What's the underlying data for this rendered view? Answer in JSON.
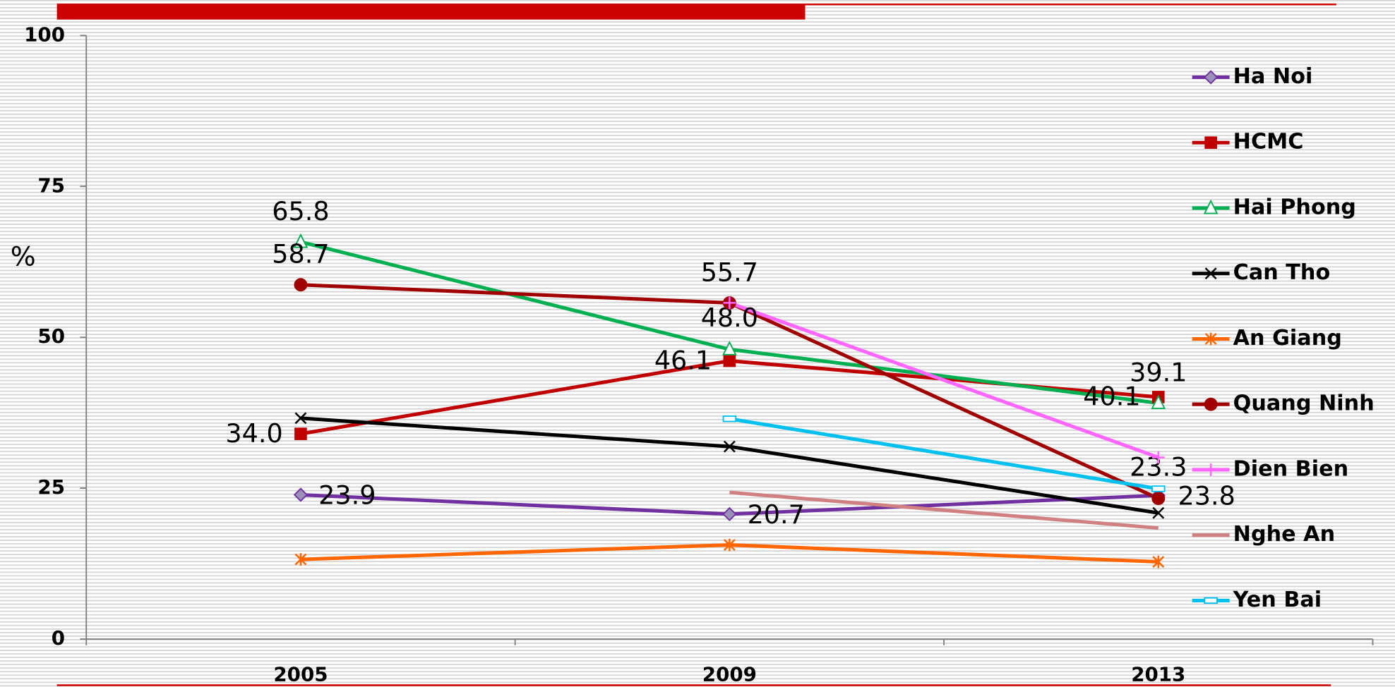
{
  "chart_data": {
    "type": "line",
    "y_label": "%",
    "categories": [
      "2005",
      "2009",
      "2013"
    ],
    "ylim": [
      0,
      100
    ],
    "yticks": [
      0,
      25,
      50,
      75,
      100
    ],
    "grid": false,
    "legend": "right",
    "series": [
      {
        "name": "Ha Noi",
        "color": "#7030a0",
        "marker": "diamond",
        "values": [
          23.9,
          20.7,
          23.8
        ],
        "value_labels": [
          "23.9",
          "20.7",
          "23.8"
        ]
      },
      {
        "name": "HCMC",
        "color": "#c00000",
        "marker": "square",
        "values": [
          34.0,
          46.1,
          40.1
        ],
        "value_labels": [
          "34.0",
          "46.1",
          "40.1"
        ]
      },
      {
        "name": "Hai Phong",
        "color": "#00b050",
        "marker": "triangle",
        "values": [
          65.8,
          48.0,
          39.1
        ],
        "value_labels": [
          "65.8",
          "48.0",
          "39.1"
        ]
      },
      {
        "name": "Can Tho",
        "color": "#000000",
        "marker": "x",
        "values": [
          36.6,
          31.9,
          20.9
        ]
      },
      {
        "name": "An Giang",
        "color": "#ff6600",
        "marker": "asterisk",
        "values": [
          13.2,
          15.6,
          12.8
        ]
      },
      {
        "name": "Quang Ninh",
        "color": "#a00000",
        "marker": "circle",
        "values": [
          58.7,
          55.7,
          23.3
        ],
        "value_labels": [
          "58.7",
          "55.7",
          "23.3"
        ]
      },
      {
        "name": "Dien Bien",
        "color": "#ff66ff",
        "marker": "plus",
        "values": [
          null,
          55.7,
          30.1
        ]
      },
      {
        "name": "Nghe An",
        "color": "#d08080",
        "marker": "none",
        "values": [
          null,
          24.3,
          18.4
        ]
      },
      {
        "name": "Yen Bai",
        "color": "#00c0f0",
        "marker": "dash",
        "values": [
          null,
          36.5,
          24.9
        ]
      }
    ]
  }
}
